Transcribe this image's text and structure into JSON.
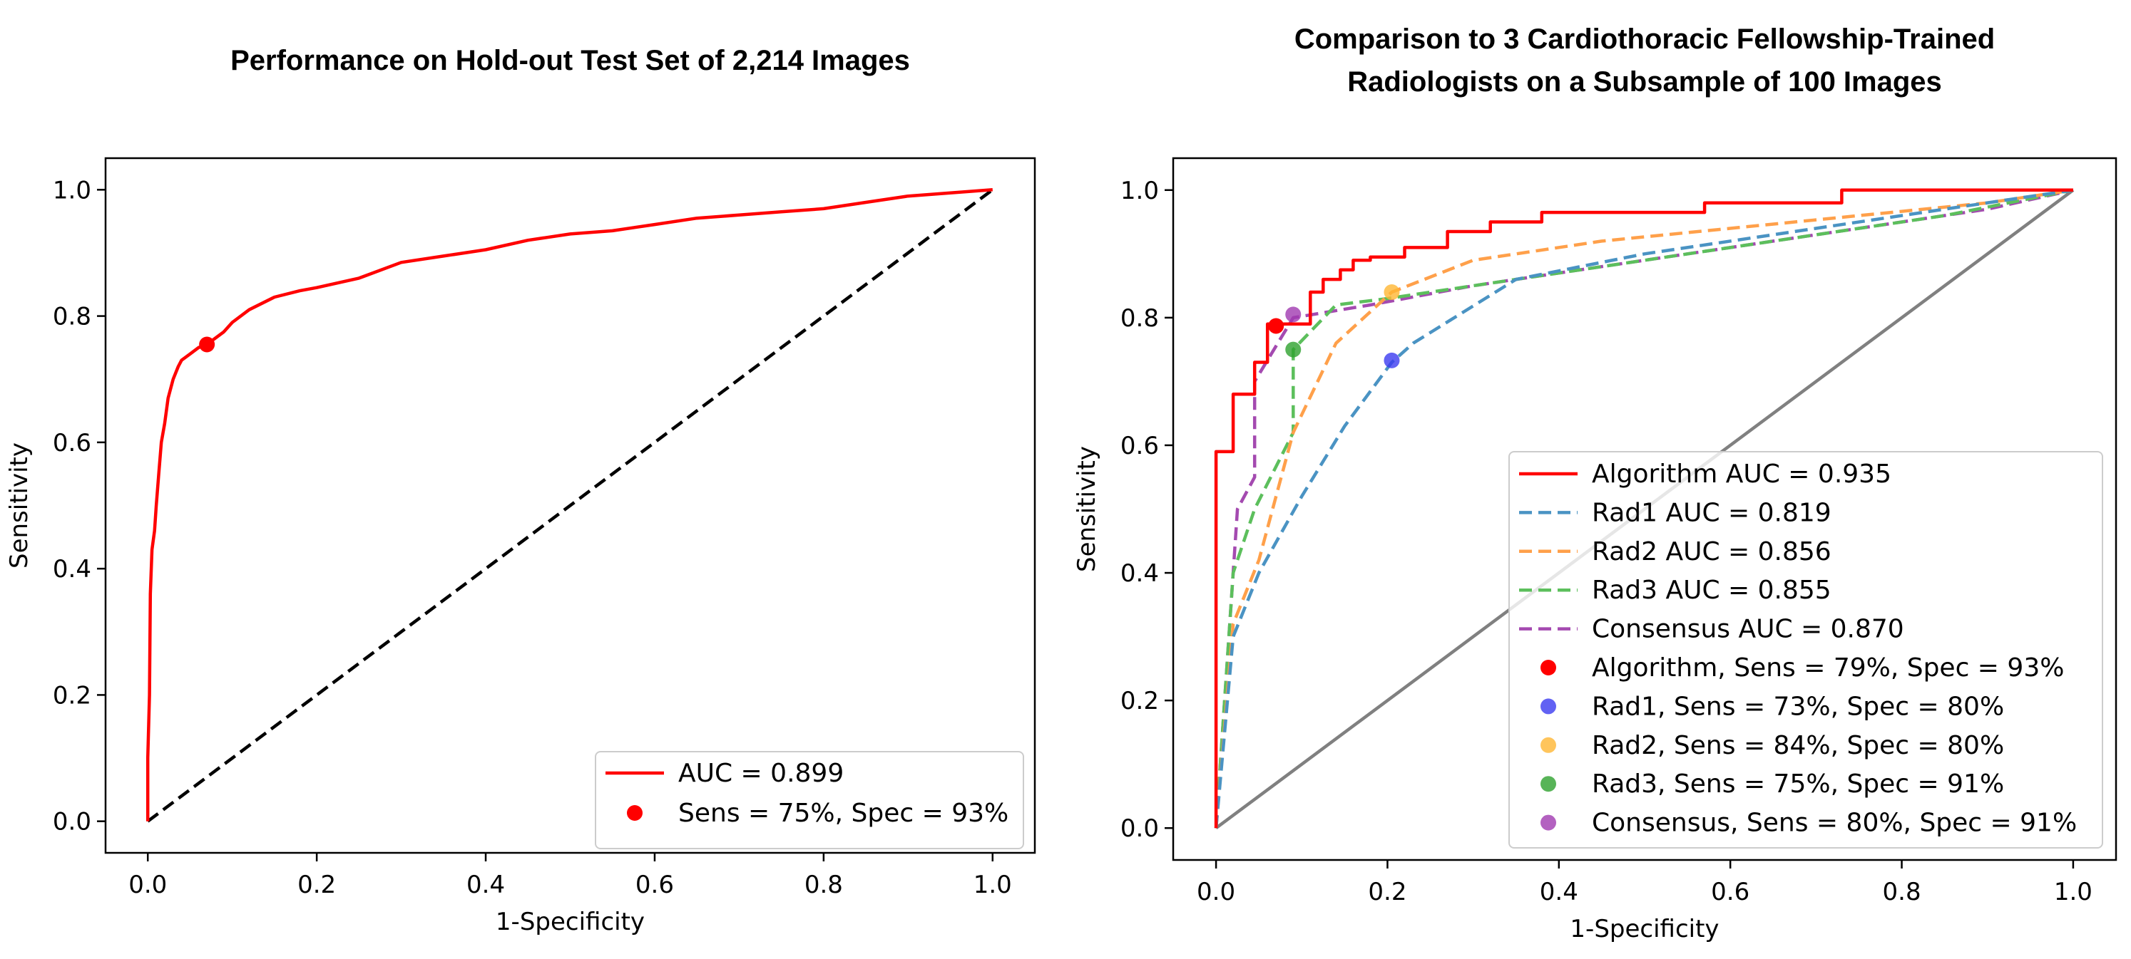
{
  "chart_data": [
    {
      "type": "line",
      "title": "Performance on Hold-out Test Set of 2,214 Images",
      "xlabel": "1-Specificity",
      "ylabel": "Sensitivity",
      "xlim": [
        -0.05,
        1.05
      ],
      "ylim": [
        -0.05,
        1.05
      ],
      "xticks": [
        "0.0",
        "0.2",
        "0.4",
        "0.6",
        "0.8",
        "1.0"
      ],
      "yticks": [
        "0.0",
        "0.2",
        "0.4",
        "0.6",
        "0.8",
        "1.0"
      ],
      "grid": false,
      "legend_position": "lower right",
      "series": [
        {
          "name": "AUC = 0.899",
          "color": "#ff0000",
          "style": "solid",
          "x": [
            0.0,
            0.0,
            0.002,
            0.003,
            0.005,
            0.008,
            0.01,
            0.013,
            0.016,
            0.02,
            0.024,
            0.03,
            0.036,
            0.04,
            0.05,
            0.06,
            0.07,
            0.08,
            0.09,
            0.1,
            0.12,
            0.15,
            0.18,
            0.2,
            0.25,
            0.3,
            0.35,
            0.4,
            0.45,
            0.5,
            0.55,
            0.6,
            0.65,
            0.7,
            0.75,
            0.8,
            0.85,
            0.9,
            0.95,
            1.0
          ],
          "y": [
            0.0,
            0.1,
            0.2,
            0.36,
            0.43,
            0.46,
            0.5,
            0.55,
            0.6,
            0.63,
            0.67,
            0.7,
            0.72,
            0.73,
            0.74,
            0.75,
            0.755,
            0.765,
            0.775,
            0.79,
            0.81,
            0.83,
            0.84,
            0.845,
            0.86,
            0.885,
            0.895,
            0.905,
            0.92,
            0.93,
            0.935,
            0.945,
            0.955,
            0.96,
            0.965,
            0.97,
            0.98,
            0.99,
            0.995,
            1.0
          ]
        },
        {
          "name": "",
          "color": "#000000",
          "style": "dashed",
          "x": [
            0.0,
            1.0
          ],
          "y": [
            0.0,
            1.0
          ]
        }
      ],
      "points": [
        {
          "name": "Sens = 75%, Spec = 93%",
          "color": "#ff0000",
          "x": 0.07,
          "y": 0.755
        }
      ],
      "legend": [
        {
          "kind": "line",
          "label": "AUC = 0.899",
          "color": "#ff0000",
          "style": "solid"
        },
        {
          "kind": "marker",
          "label": "Sens = 75%, Spec = 93%",
          "color": "#ff0000"
        }
      ]
    },
    {
      "type": "line",
      "title": [
        "Comparison to 3 Cardiothoracic Fellowship-Trained",
        "Radiologists on a Subsample of 100 Images"
      ],
      "xlabel": "1-Specificity",
      "ylabel": "Sensitivity",
      "xlim": [
        -0.05,
        1.05
      ],
      "ylim": [
        -0.05,
        1.05
      ],
      "xticks": [
        "0.0",
        "0.2",
        "0.4",
        "0.6",
        "0.8",
        "1.0"
      ],
      "yticks": [
        "0.0",
        "0.2",
        "0.4",
        "0.6",
        "0.8",
        "1.0"
      ],
      "grid": false,
      "legend_position": "lower right",
      "series": [
        {
          "name": "Algorithm AUC = 0.935",
          "color": "#ff0000",
          "style": "solid",
          "x": [
            0.0,
            0.0,
            0.02,
            0.02,
            0.045,
            0.045,
            0.06,
            0.06,
            0.11,
            0.11,
            0.125,
            0.125,
            0.145,
            0.145,
            0.16,
            0.16,
            0.18,
            0.18,
            0.22,
            0.22,
            0.27,
            0.27,
            0.32,
            0.32,
            0.38,
            0.38,
            0.57,
            0.57,
            0.73,
            0.73,
            1.0
          ],
          "y": [
            0.0,
            0.59,
            0.59,
            0.68,
            0.68,
            0.73,
            0.73,
            0.79,
            0.79,
            0.84,
            0.84,
            0.86,
            0.86,
            0.875,
            0.875,
            0.89,
            0.89,
            0.895,
            0.895,
            0.91,
            0.91,
            0.935,
            0.935,
            0.95,
            0.95,
            0.965,
            0.965,
            0.98,
            0.98,
            1.0,
            1.0
          ]
        },
        {
          "name": "Rad1 AUC = 0.819",
          "color": "#4a93c3",
          "style": "dashed",
          "x": [
            0.0,
            0.02,
            0.05,
            0.1,
            0.15,
            0.205,
            0.23,
            0.35,
            0.5,
            0.7,
            0.85,
            1.0
          ],
          "y": [
            0.0,
            0.3,
            0.4,
            0.52,
            0.63,
            0.73,
            0.76,
            0.86,
            0.9,
            0.94,
            0.97,
            1.0
          ]
        },
        {
          "name": "Rad2 AUC = 0.856",
          "color": "#ffa04a",
          "style": "dashed",
          "x": [
            0.0,
            0.02,
            0.05,
            0.09,
            0.14,
            0.205,
            0.3,
            0.45,
            0.6,
            0.75,
            0.9,
            1.0
          ],
          "y": [
            0.0,
            0.32,
            0.42,
            0.62,
            0.76,
            0.84,
            0.89,
            0.92,
            0.94,
            0.96,
            0.98,
            1.0
          ]
        },
        {
          "name": "Rad3 AUC = 0.855",
          "color": "#5cbf5c",
          "style": "dashed",
          "x": [
            0.0,
            0.02,
            0.045,
            0.09,
            0.09,
            0.14,
            0.2,
            0.35,
            0.5,
            0.7,
            0.85,
            1.0
          ],
          "y": [
            0.0,
            0.4,
            0.5,
            0.62,
            0.75,
            0.82,
            0.83,
            0.86,
            0.89,
            0.93,
            0.96,
            1.0
          ]
        },
        {
          "name": "Consensus AUC = 0.870",
          "color": "#a44ab0",
          "style": "dashed",
          "x": [
            0.0,
            0.025,
            0.045,
            0.045,
            0.09,
            0.18,
            0.3,
            0.45,
            0.6,
            0.75,
            0.9,
            1.0
          ],
          "y": [
            0.0,
            0.5,
            0.55,
            0.7,
            0.8,
            0.82,
            0.85,
            0.88,
            0.91,
            0.94,
            0.97,
            1.0
          ]
        },
        {
          "name": "",
          "color": "#808080",
          "style": "solid",
          "x": [
            0.0,
            1.0
          ],
          "y": [
            0.0,
            1.0
          ]
        }
      ],
      "points": [
        {
          "name": "Algorithm, Sens = 79%, Spec = 93%",
          "color": "#ff0000",
          "x": 0.07,
          "y": 0.787
        },
        {
          "name": "Rad1, Sens = 73%, Spec = 80%",
          "color": "#3b3bf0",
          "x": 0.205,
          "y": 0.733
        },
        {
          "name": "Rad2, Sens = 84%, Spec = 80%",
          "color": "#ffb733",
          "x": 0.205,
          "y": 0.84
        },
        {
          "name": "Rad3, Sens = 75%, Spec = 91%",
          "color": "#2ea12e",
          "x": 0.09,
          "y": 0.75
        },
        {
          "name": "Consensus, Sens = 80%, Spec = 91%",
          "color": "#a03ab0",
          "x": 0.09,
          "y": 0.805
        }
      ],
      "legend": [
        {
          "kind": "line",
          "label": "Algorithm AUC = 0.935",
          "color": "#ff0000",
          "style": "solid"
        },
        {
          "kind": "line",
          "label": "Rad1 AUC = 0.819",
          "color": "#4a93c3",
          "style": "dashed"
        },
        {
          "kind": "line",
          "label": "Rad2 AUC = 0.856",
          "color": "#ffa04a",
          "style": "dashed"
        },
        {
          "kind": "line",
          "label": "Rad3 AUC = 0.855",
          "color": "#5cbf5c",
          "style": "dashed"
        },
        {
          "kind": "line",
          "label": "Consensus AUC = 0.870",
          "color": "#a44ab0",
          "style": "dashed"
        },
        {
          "kind": "marker",
          "label": "Algorithm, Sens = 79%, Spec = 93%",
          "color": "#ff0000"
        },
        {
          "kind": "marker",
          "label": "Rad1, Sens = 73%, Spec = 80%",
          "color": "#3b3bf0"
        },
        {
          "kind": "marker",
          "label": "Rad2, Sens = 84%, Spec = 80%",
          "color": "#ffb733"
        },
        {
          "kind": "marker",
          "label": "Rad3, Sens = 75%, Spec = 91%",
          "color": "#2ea12e"
        },
        {
          "kind": "marker",
          "label": "Consensus, Sens = 80%, Spec = 91%",
          "color": "#a03ab0"
        }
      ]
    }
  ]
}
